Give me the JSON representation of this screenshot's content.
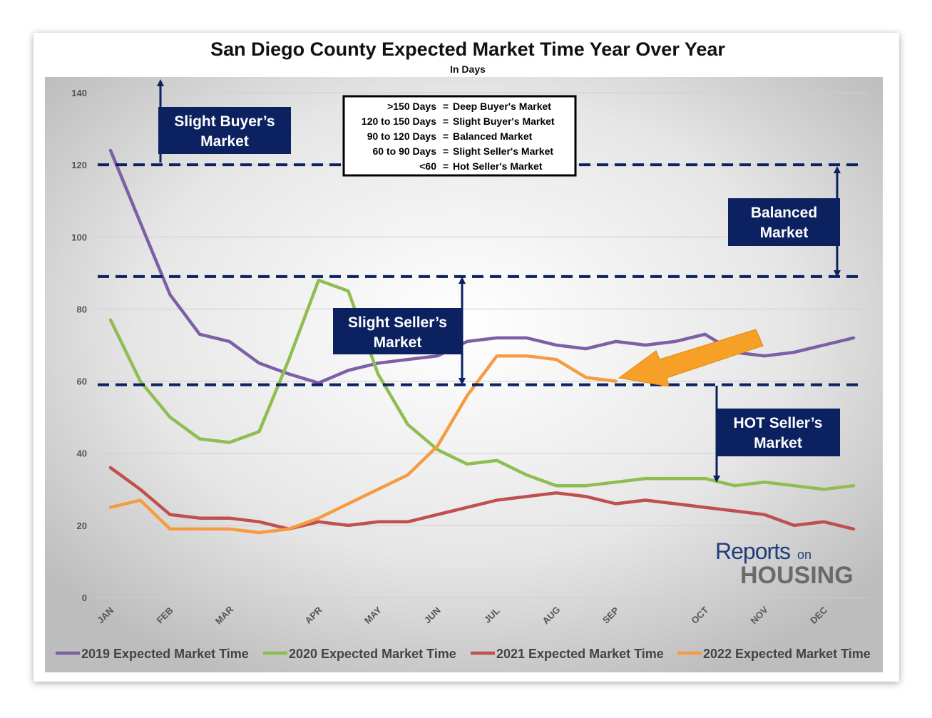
{
  "chart_data": {
    "type": "line",
    "title": "San Diego County Expected Market Time Year Over Year",
    "subtitle": "In Days",
    "categories": [
      "JAN",
      null,
      "FEB",
      null,
      "MAR",
      null,
      null,
      "APR",
      null,
      "MAY",
      null,
      "JUN",
      null,
      "JUL",
      null,
      "AUG",
      null,
      "SEP",
      null,
      null,
      "OCT",
      null,
      "NOV",
      null,
      "DEC",
      null
    ],
    "series": [
      {
        "name": "2019 Expected Market Time",
        "color": "#7d5fa6",
        "values": [
          124,
          104,
          84,
          73,
          71,
          65,
          62,
          59.5,
          63,
          65,
          66,
          67,
          71,
          72,
          72,
          70,
          69,
          71,
          70,
          71,
          73,
          68,
          67,
          68,
          70,
          72
        ]
      },
      {
        "name": "2020 Expected Market Time",
        "color": "#8fbd52",
        "values": [
          77,
          60,
          50,
          44,
          43,
          46,
          66,
          88,
          85,
          62,
          48,
          41,
          37,
          38,
          34,
          31,
          31,
          32,
          33,
          33,
          33,
          31,
          32,
          31,
          30,
          31
        ]
      },
      {
        "name": "2021 Expected Market Time",
        "color": "#c0504d",
        "values": [
          36,
          30,
          23,
          22,
          22,
          21,
          19,
          21,
          20,
          21,
          21,
          23,
          25,
          27,
          28,
          29,
          28,
          26,
          27,
          26,
          25,
          24,
          23,
          20,
          21,
          19
        ]
      },
      {
        "name": "2022 Expected Market Time",
        "color": "#f59b42",
        "values": [
          25,
          27,
          19,
          19,
          19,
          18,
          19,
          22,
          26,
          30,
          34,
          42,
          56,
          67,
          67,
          66,
          61,
          60,
          null,
          null,
          null,
          null,
          null,
          null,
          null,
          null
        ]
      }
    ],
    "ylim": [
      0,
      140
    ],
    "yticks": [
      0,
      20,
      40,
      60,
      80,
      100,
      120,
      140
    ],
    "grid": true,
    "reference_lines": [
      120,
      89,
      59
    ],
    "reference_color": "#0b2160",
    "annotations": [
      {
        "lines": [
          "Slight Buyer’s",
          "Market"
        ]
      },
      {
        "lines": [
          "Balanced",
          "Market"
        ]
      },
      {
        "lines": [
          "Slight Seller’s",
          "Market"
        ]
      },
      {
        "lines": [
          "HOT Seller’s",
          "Market"
        ]
      }
    ],
    "key": {
      "separator": "=",
      "rows": [
        {
          "range": ">150 Days",
          "market": "Deep Buyer's Market"
        },
        {
          "range": "120 to 150 Days",
          "market": "Slight Buyer's Market"
        },
        {
          "range": "90 to 120 Days",
          "market": "Balanced Market"
        },
        {
          "range": "60 to 90 Days",
          "market": "Slight Seller's Market"
        },
        {
          "range": "<60",
          "market": "Hot Seller's Market"
        }
      ]
    },
    "logo": {
      "main": "Reports",
      "small": "on",
      "sub": "HOUSING"
    }
  }
}
